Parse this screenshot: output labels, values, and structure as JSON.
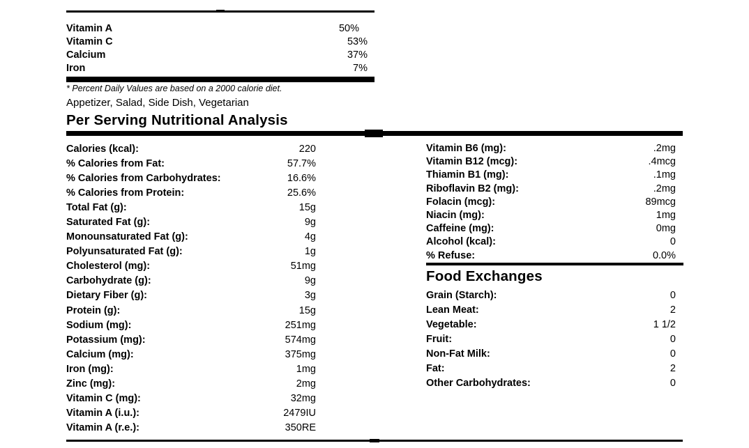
{
  "daily_values": [
    {
      "label": "Vitamin A",
      "value": "50%"
    },
    {
      "label": "Vitamin C",
      "value": "53%"
    },
    {
      "label": "Calcium",
      "value": "37%"
    },
    {
      "label": "Iron",
      "value": "7%"
    }
  ],
  "footnote": "* Percent Daily Values are based on a 2000 calorie diet.",
  "categories": "Appetizer, Salad, Side Dish, Vegetarian",
  "analysis_title": "Per Serving Nutritional Analysis",
  "nutrients": [
    {
      "label": "Calories (kcal):",
      "value": "220"
    },
    {
      "label": "% Calories from Fat:",
      "value": "57.7%"
    },
    {
      "label": "% Calories from Carbohydrates:",
      "value": "16.6%"
    },
    {
      "label": "% Calories from Protein:",
      "value": "25.6%"
    },
    {
      "label": "Total Fat (g):",
      "value": "15g"
    },
    {
      "label": "Saturated Fat (g):",
      "value": "9g"
    },
    {
      "label": "Monounsaturated Fat (g):",
      "value": "4g"
    },
    {
      "label": "Polyunsaturated Fat (g):",
      "value": "1g"
    },
    {
      "label": "Cholesterol (mg):",
      "value": "51mg"
    },
    {
      "label": "Carbohydrate (g):",
      "value": "9g"
    },
    {
      "label": "Dietary Fiber (g):",
      "value": "3g"
    },
    {
      "label": "Protein (g):",
      "value": "15g"
    },
    {
      "label": "Sodium (mg):",
      "value": "251mg"
    },
    {
      "label": "Potassium (mg):",
      "value": "574mg"
    },
    {
      "label": "Calcium (mg):",
      "value": "375mg"
    },
    {
      "label": "Iron (mg):",
      "value": "1mg"
    },
    {
      "label": "Zinc (mg):",
      "value": "2mg"
    },
    {
      "label": "Vitamin C (mg):",
      "value": "32mg"
    },
    {
      "label": "Vitamin A (i.u.):",
      "value": "2479IU"
    },
    {
      "label": "Vitamin A (r.e.):",
      "value": "350RE"
    }
  ],
  "vitamins": [
    {
      "label": "Vitamin B6 (mg):",
      "value": ".2mg"
    },
    {
      "label": "Vitamin B12 (mcg):",
      "value": ".4mcg"
    },
    {
      "label": "Thiamin B1 (mg):",
      "value": ".1mg"
    },
    {
      "label": "Riboflavin B2 (mg):",
      "value": ".2mg"
    },
    {
      "label": "Folacin (mcg):",
      "value": "89mcg"
    },
    {
      "label": "Niacin (mg):",
      "value": "1mg"
    },
    {
      "label": "Caffeine (mg):",
      "value": "0mg"
    },
    {
      "label": "Alcohol (kcal):",
      "value": "0"
    },
    {
      "label": "% Refuse:",
      "value": "0.0%"
    }
  ],
  "exchanges_title": "Food Exchanges",
  "exchanges": [
    {
      "label": "Grain (Starch):",
      "value": "0"
    },
    {
      "label": "Lean Meat:",
      "value": "2"
    },
    {
      "label": "Vegetable:",
      "value": "1 1/2"
    },
    {
      "label": "Fruit:",
      "value": "0"
    },
    {
      "label": "Non-Fat Milk:",
      "value": "0"
    },
    {
      "label": "Fat:",
      "value": "2"
    },
    {
      "label": "Other Carbohydrates:",
      "value": "0"
    }
  ]
}
